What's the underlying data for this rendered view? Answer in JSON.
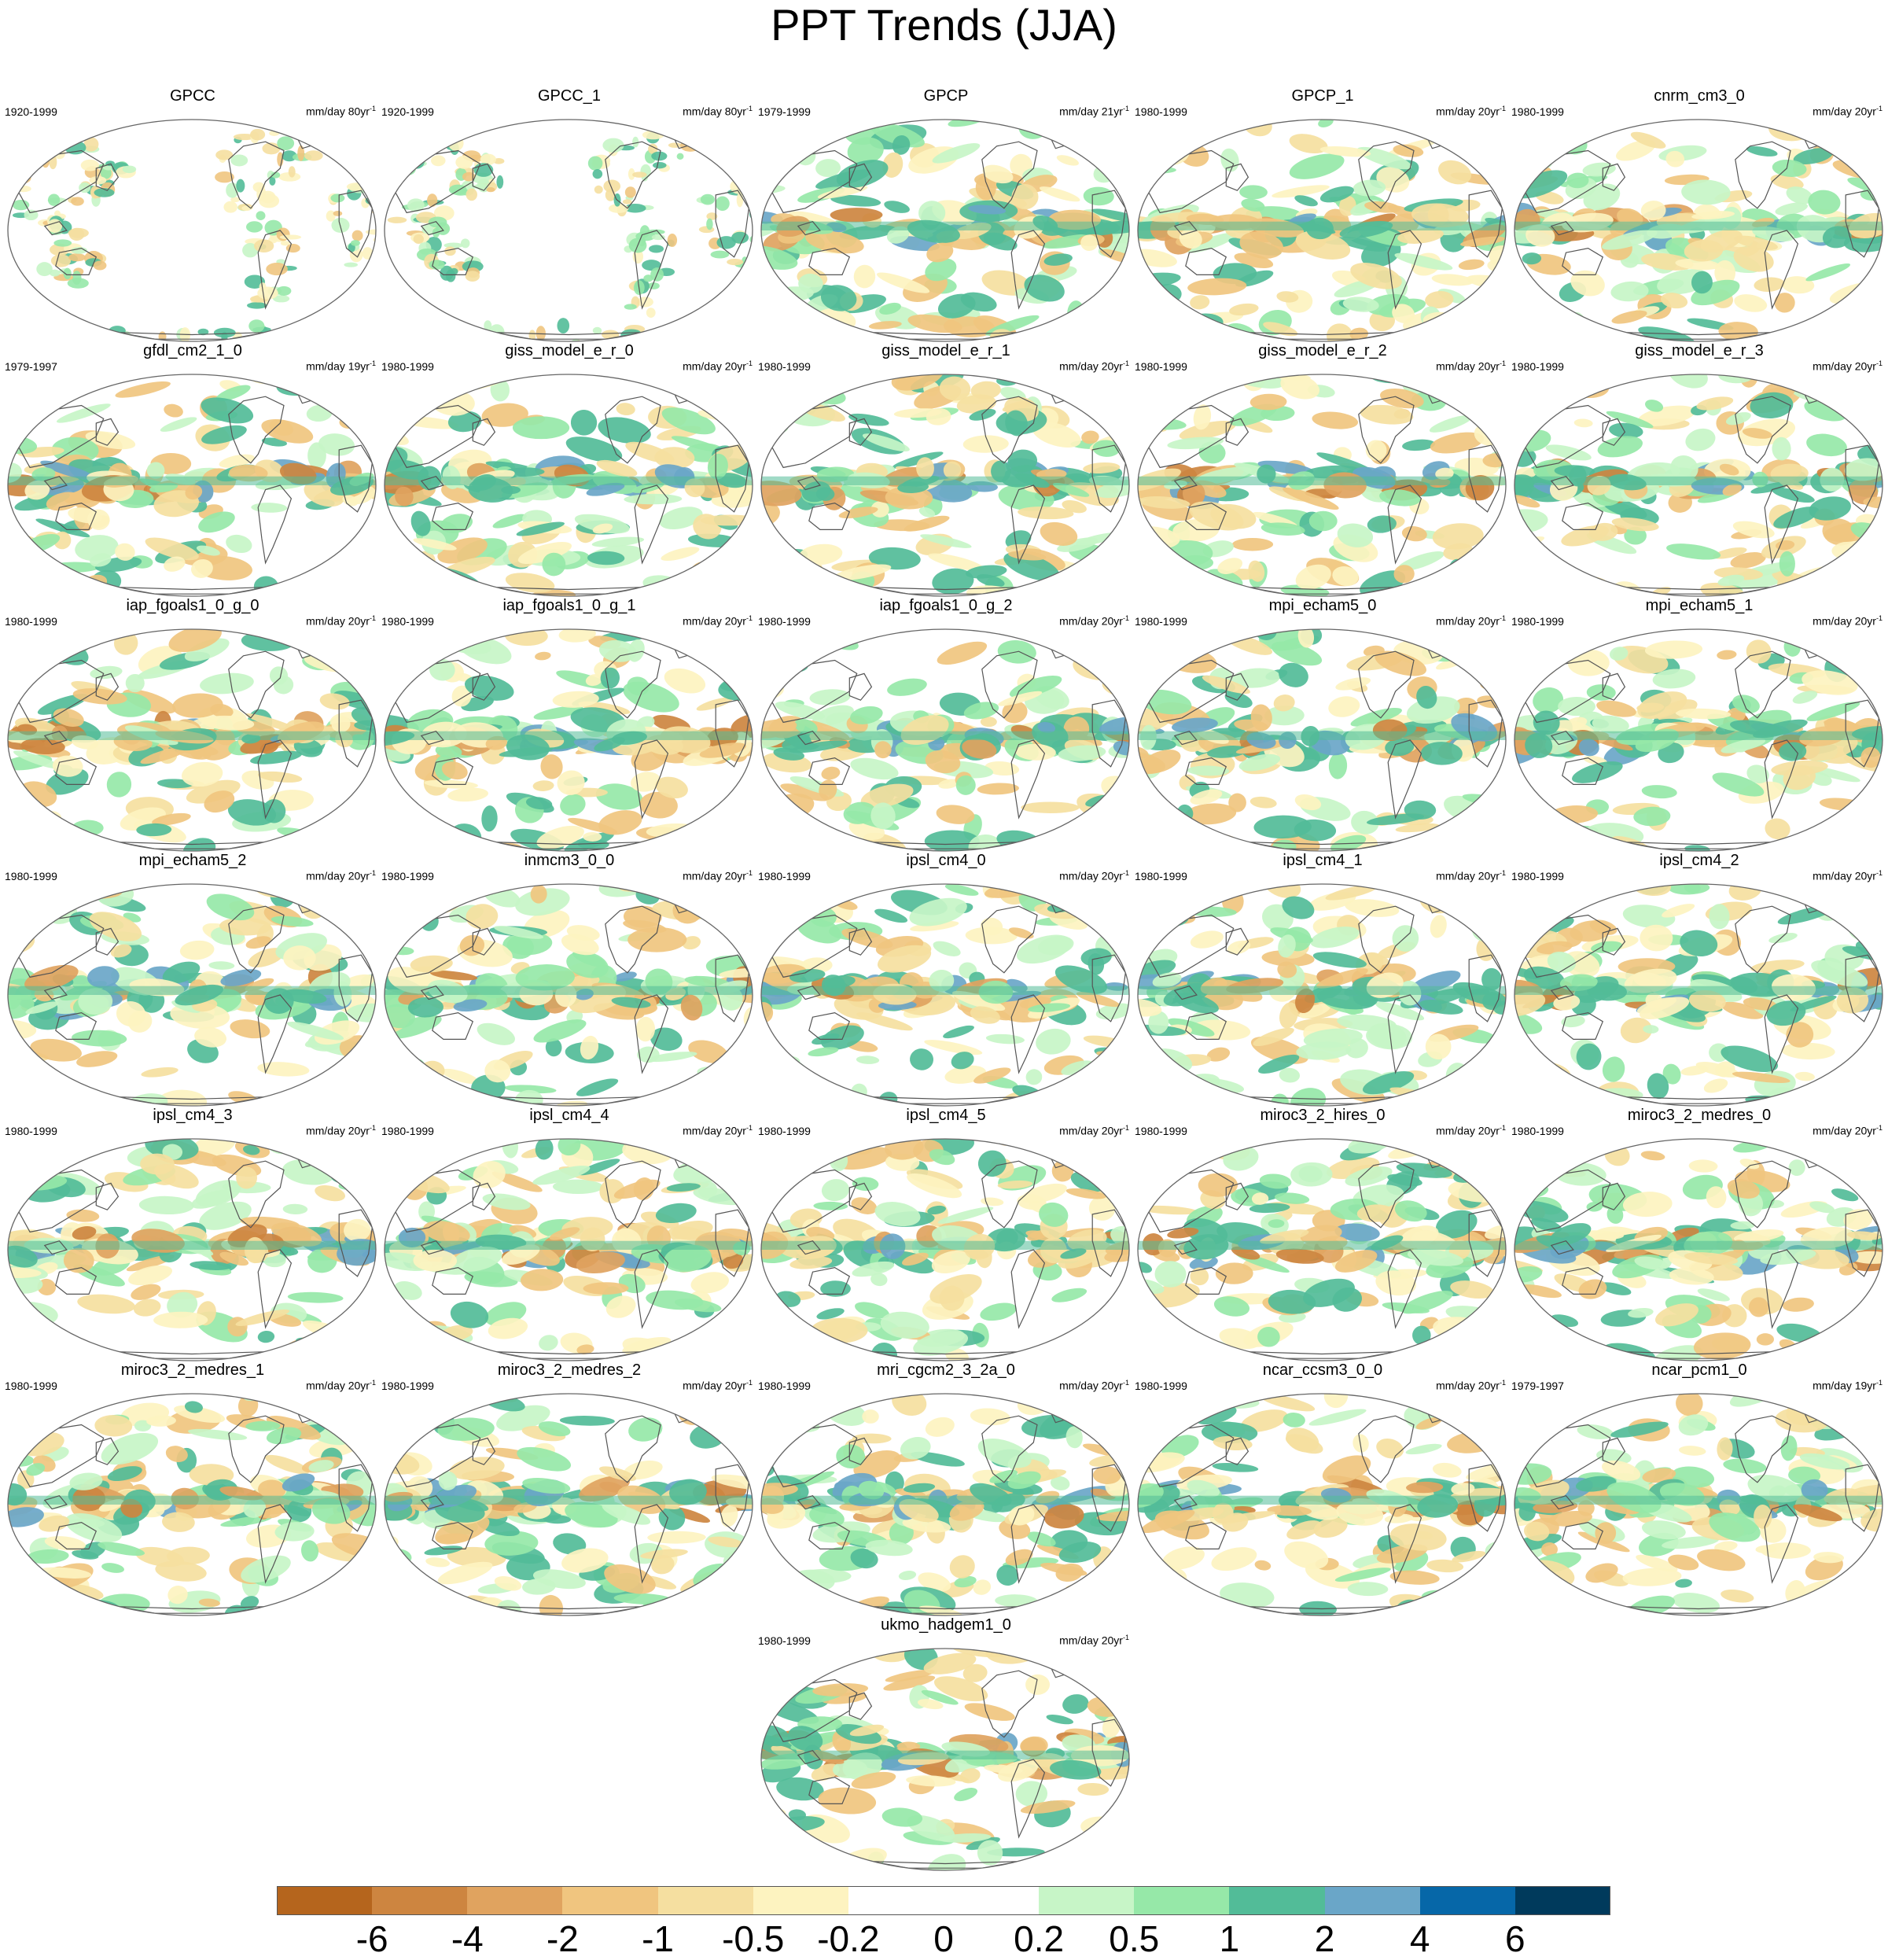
{
  "title": "PPT Trends (JJA)",
  "panels": [
    {
      "name": "GPCC",
      "years": "1920-1999",
      "units": "mm/day 80yr",
      "kind": "land"
    },
    {
      "name": "GPCC_1",
      "years": "1920-1999",
      "units": "mm/day 80yr",
      "kind": "land"
    },
    {
      "name": "GPCP",
      "years": "1979-1999",
      "units": "mm/day 21yr",
      "kind": "global"
    },
    {
      "name": "GPCP_1",
      "years": "1980-1999",
      "units": "mm/day 20yr",
      "kind": "global"
    },
    {
      "name": "cnrm_cm3_0",
      "years": "1980-1999",
      "units": "mm/day 20yr",
      "kind": "global"
    },
    {
      "name": "gfdl_cm2_1_0",
      "years": "1979-1997",
      "units": "mm/day 19yr",
      "kind": "global"
    },
    {
      "name": "giss_model_e_r_0",
      "years": "1980-1999",
      "units": "mm/day 20yr",
      "kind": "global"
    },
    {
      "name": "giss_model_e_r_1",
      "years": "1980-1999",
      "units": "mm/day 20yr",
      "kind": "global"
    },
    {
      "name": "giss_model_e_r_2",
      "years": "1980-1999",
      "units": "mm/day 20yr",
      "kind": "global"
    },
    {
      "name": "giss_model_e_r_3",
      "years": "1980-1999",
      "units": "mm/day 20yr",
      "kind": "global"
    },
    {
      "name": "iap_fgoals1_0_g_0",
      "years": "1980-1999",
      "units": "mm/day 20yr",
      "kind": "global"
    },
    {
      "name": "iap_fgoals1_0_g_1",
      "years": "1980-1999",
      "units": "mm/day 20yr",
      "kind": "global"
    },
    {
      "name": "iap_fgoals1_0_g_2",
      "years": "1980-1999",
      "units": "mm/day 20yr",
      "kind": "global"
    },
    {
      "name": "mpi_echam5_0",
      "years": "1980-1999",
      "units": "mm/day 20yr",
      "kind": "global"
    },
    {
      "name": "mpi_echam5_1",
      "years": "1980-1999",
      "units": "mm/day 20yr",
      "kind": "global"
    },
    {
      "name": "mpi_echam5_2",
      "years": "1980-1999",
      "units": "mm/day 20yr",
      "kind": "global"
    },
    {
      "name": "inmcm3_0_0",
      "years": "1980-1999",
      "units": "mm/day 20yr",
      "kind": "global"
    },
    {
      "name": "ipsl_cm4_0",
      "years": "1980-1999",
      "units": "mm/day 20yr",
      "kind": "global"
    },
    {
      "name": "ipsl_cm4_1",
      "years": "1980-1999",
      "units": "mm/day 20yr",
      "kind": "global"
    },
    {
      "name": "ipsl_cm4_2",
      "years": "1980-1999",
      "units": "mm/day 20yr",
      "kind": "global"
    },
    {
      "name": "ipsl_cm4_3",
      "years": "1980-1999",
      "units": "mm/day 20yr",
      "kind": "global"
    },
    {
      "name": "ipsl_cm4_4",
      "years": "1980-1999",
      "units": "mm/day 20yr",
      "kind": "global"
    },
    {
      "name": "ipsl_cm4_5",
      "years": "1980-1999",
      "units": "mm/day 20yr",
      "kind": "global"
    },
    {
      "name": "miroc3_2_hires_0",
      "years": "1980-1999",
      "units": "mm/day 20yr",
      "kind": "global"
    },
    {
      "name": "miroc3_2_medres_0",
      "years": "1980-1999",
      "units": "mm/day 20yr",
      "kind": "global"
    },
    {
      "name": "miroc3_2_medres_1",
      "years": "1980-1999",
      "units": "mm/day 20yr",
      "kind": "global"
    },
    {
      "name": "miroc3_2_medres_2",
      "years": "1980-1999",
      "units": "mm/day 20yr",
      "kind": "global"
    },
    {
      "name": "mri_cgcm2_3_2a_0",
      "years": "1980-1999",
      "units": "mm/day 20yr",
      "kind": "global"
    },
    {
      "name": "ncar_ccsm3_0_0",
      "years": "1980-1999",
      "units": "mm/day 20yr",
      "kind": "global"
    },
    {
      "name": "ncar_pcm1_0",
      "years": "1979-1997",
      "units": "mm/day 19yr",
      "kind": "global"
    },
    {
      "name": "ukmo_hadgem1_0",
      "years": "1980-1999",
      "units": "mm/day 20yr",
      "kind": "global"
    }
  ],
  "units_superscript": "-1",
  "colorbar": {
    "colors": [
      "#b5651d",
      "#cd8540",
      "#e0a35f",
      "#f0c57f",
      "#f5dfa0",
      "#fdf3c0",
      "#ffffff",
      "#ffffff",
      "#c7f5c7",
      "#96e8a8",
      "#52bc98",
      "#6aa6c8",
      "#0667a8",
      "#003a5c"
    ],
    "tick_labels": [
      "-6",
      "-4",
      "-2",
      "-1",
      "-0.5",
      "-0.2",
      "0",
      "0.2",
      "0.5",
      "1",
      "2",
      "4",
      "6"
    ]
  }
}
